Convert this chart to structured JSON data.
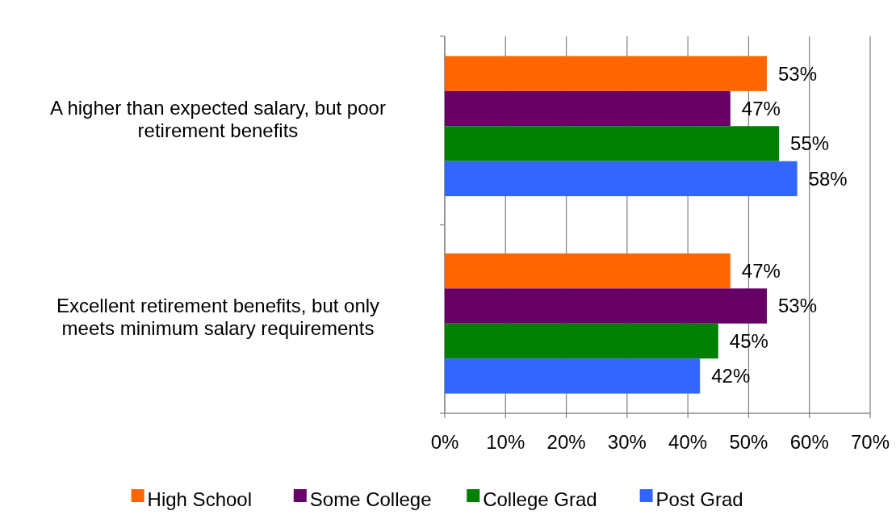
{
  "chart_data": {
    "type": "bar",
    "orientation": "horizontal",
    "categories": [
      "A higher than expected salary, but poor retirement benefits",
      "Excellent retirement benefits, but only meets minimum salary requirements"
    ],
    "series": [
      {
        "name": "High School",
        "color": "#ff6600",
        "values": [
          53,
          47
        ],
        "value_labels": [
          "53%",
          "47%"
        ]
      },
      {
        "name": "Some College",
        "color": "#660066",
        "values": [
          47,
          53
        ],
        "value_labels": [
          "47%",
          "53%"
        ]
      },
      {
        "name": "College Grad",
        "color": "#008000",
        "values": [
          55,
          45
        ],
        "value_labels": [
          "55%",
          "45%"
        ]
      },
      {
        "name": "Post Grad",
        "color": "#3366ff",
        "values": [
          58,
          42
        ],
        "value_labels": [
          "58%",
          "42%"
        ]
      }
    ],
    "xlim": [
      0,
      70
    ],
    "xticks": [
      {
        "value": 0,
        "label": "0%"
      },
      {
        "value": 10,
        "label": "10%"
      },
      {
        "value": 20,
        "label": "20%"
      },
      {
        "value": 30,
        "label": "30%"
      },
      {
        "value": 40,
        "label": "40%"
      },
      {
        "value": 50,
        "label": "50%"
      },
      {
        "value": 60,
        "label": "60%"
      },
      {
        "value": 70,
        "label": "70%"
      }
    ],
    "grid": "x",
    "legend": "bottom"
  }
}
